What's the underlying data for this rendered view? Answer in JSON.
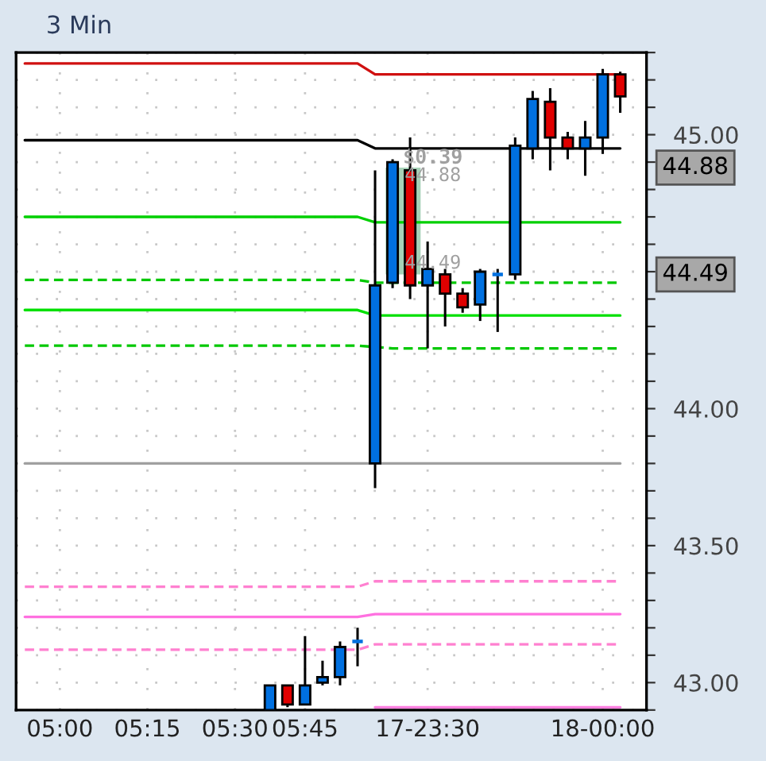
{
  "chart_data": {
    "type": "candlestick",
    "title": "3 Min",
    "categories": [
      null,
      null,
      "05:00",
      null,
      null,
      null,
      null,
      "05:15",
      null,
      null,
      null,
      null,
      "05:30",
      null,
      null,
      null,
      "05:45",
      null,
      null,
      null,
      null,
      null,
      null,
      "17-23:30",
      null,
      null,
      null,
      null,
      null,
      null,
      null,
      null,
      null,
      "18-00:00",
      null,
      null
    ],
    "ohlc": [
      null,
      null,
      null,
      null,
      null,
      null,
      null,
      null,
      null,
      null,
      null,
      null,
      null,
      null,
      [
        42.9,
        42.99,
        42.9,
        42.99
      ],
      [
        42.99,
        42.99,
        42.91,
        42.92
      ],
      [
        42.92,
        43.17,
        42.92,
        42.99
      ],
      [
        43.0,
        43.08,
        42.99,
        43.02
      ],
      [
        43.02,
        43.15,
        42.99,
        43.13
      ],
      [
        43.15,
        43.2,
        43.06,
        43.15
      ],
      [
        43.8,
        44.87,
        43.71,
        44.45
      ],
      [
        44.46,
        44.91,
        44.44,
        44.9
      ],
      [
        44.87,
        44.99,
        44.4,
        44.45
      ],
      [
        44.45,
        44.61,
        44.22,
        44.51
      ],
      [
        44.49,
        44.51,
        44.3,
        44.42
      ],
      [
        44.42,
        44.44,
        44.35,
        44.37
      ],
      [
        44.38,
        44.51,
        44.32,
        44.5
      ],
      [
        44.49,
        44.51,
        44.28,
        44.49
      ],
      [
        44.49,
        44.99,
        44.47,
        44.96
      ],
      [
        44.95,
        45.16,
        44.91,
        45.13
      ],
      [
        45.12,
        45.17,
        44.87,
        44.99
      ],
      [
        44.99,
        45.01,
        44.91,
        44.95
      ],
      [
        44.95,
        45.05,
        44.85,
        44.99
      ],
      [
        44.99,
        45.24,
        44.93,
        45.22
      ],
      [
        45.22,
        45.23,
        45.08,
        45.14
      ],
      null
    ],
    "colors": [
      null,
      null,
      null,
      null,
      null,
      null,
      null,
      null,
      null,
      null,
      null,
      null,
      null,
      null,
      "#0070e0",
      "#e00000",
      "#0070e0",
      "#0070e0",
      "#0070e0",
      "#0070e0",
      "#0070e0",
      "#0070e0",
      "#e00000",
      "#0070e0",
      "#e00000",
      "#e00000",
      "#0070e0",
      "#0070e0",
      "#0070e0",
      "#0070e0",
      "#e00000",
      "#e00000",
      "#0070e0",
      "#0070e0",
      "#e00000",
      null
    ],
    "series": [
      {
        "type": "line",
        "color": "#d01010",
        "line_style": "solid",
        "values": [
          45.26,
          45.26,
          45.26,
          45.26,
          45.26,
          45.26,
          45.26,
          45.26,
          45.26,
          45.26,
          45.26,
          45.26,
          45.26,
          45.26,
          45.26,
          45.26,
          45.26,
          45.26,
          45.26,
          45.26,
          45.22,
          45.22,
          45.22,
          45.22,
          45.22,
          45.22,
          45.22,
          45.22,
          45.22,
          45.22,
          45.22,
          45.22,
          45.22,
          null,
          45.22,
          null
        ]
      },
      {
        "type": "line",
        "color": "#000000",
        "line_style": "solid",
        "values": [
          44.98,
          44.98,
          44.98,
          44.98,
          44.98,
          44.98,
          44.98,
          44.98,
          44.98,
          44.98,
          44.98,
          44.98,
          44.98,
          44.98,
          44.98,
          44.98,
          44.98,
          44.98,
          44.98,
          44.98,
          44.95,
          44.95,
          44.95,
          44.95,
          44.95,
          44.95,
          44.95,
          44.95,
          44.95,
          44.95,
          44.95,
          44.95,
          44.95,
          44.95,
          44.95,
          null
        ]
      },
      {
        "type": "line",
        "color": "#00d000",
        "line_style": "solid",
        "values": [
          44.7,
          44.7,
          44.7,
          44.7,
          44.7,
          44.7,
          44.7,
          44.7,
          44.7,
          44.7,
          44.7,
          44.7,
          44.7,
          44.7,
          44.7,
          44.7,
          44.7,
          44.7,
          44.7,
          44.7,
          44.68,
          44.68,
          44.68,
          44.68,
          44.68,
          44.68,
          44.68,
          44.68,
          null,
          44.68,
          44.68,
          44.68,
          44.68,
          44.68,
          44.68,
          null
        ]
      },
      {
        "type": "line",
        "color": "#00c800",
        "line_style": "dashed",
        "values": [
          44.47,
          44.47,
          44.47,
          44.47,
          44.47,
          44.47,
          44.47,
          44.47,
          44.47,
          44.47,
          44.47,
          44.47,
          44.47,
          44.47,
          44.47,
          44.47,
          44.47,
          44.47,
          44.47,
          44.47,
          44.46,
          44.46,
          null,
          44.46,
          44.46,
          44.46,
          null,
          44.46,
          44.46,
          44.46,
          44.46,
          44.46,
          44.46,
          44.46,
          44.46,
          null
        ]
      },
      {
        "type": "line",
        "color": "#00e000",
        "line_style": "solid",
        "values": [
          44.36,
          44.36,
          44.36,
          44.36,
          44.36,
          44.36,
          44.36,
          44.36,
          44.36,
          44.36,
          44.36,
          44.36,
          44.36,
          44.36,
          44.36,
          44.36,
          44.36,
          44.36,
          44.36,
          44.36,
          44.34,
          44.34,
          44.34,
          44.34,
          44.34,
          44.34,
          44.34,
          44.34,
          44.34,
          44.34,
          44.34,
          44.34,
          44.34,
          44.34,
          44.34,
          null
        ]
      },
      {
        "type": "line",
        "color": "#00c800",
        "line_style": "dashed",
        "values": [
          44.23,
          44.23,
          44.23,
          44.23,
          44.23,
          44.23,
          44.23,
          44.23,
          44.23,
          44.23,
          44.23,
          44.23,
          44.23,
          44.23,
          44.23,
          44.23,
          44.23,
          44.23,
          44.23,
          44.23,
          null,
          44.22,
          44.22,
          44.22,
          44.22,
          44.22,
          44.22,
          44.22,
          44.22,
          44.22,
          44.22,
          44.22,
          44.22,
          44.22,
          44.22,
          null
        ]
      },
      {
        "type": "line",
        "color": "#a0a0a0",
        "line_style": "solid",
        "values": [
          43.8,
          43.8,
          43.8,
          43.8,
          43.8,
          43.8,
          43.8,
          43.8,
          43.8,
          43.8,
          43.8,
          43.8,
          43.8,
          43.8,
          43.8,
          43.8,
          43.8,
          43.8,
          43.8,
          43.8,
          43.8,
          43.8,
          43.8,
          43.8,
          43.8,
          43.8,
          43.8,
          43.8,
          43.8,
          43.8,
          43.8,
          43.8,
          43.8,
          43.8,
          43.8,
          null
        ]
      },
      {
        "type": "line",
        "color": "#ff80d0",
        "line_style": "dashed",
        "values": [
          43.35,
          43.35,
          43.35,
          43.35,
          43.35,
          43.35,
          43.35,
          43.35,
          43.35,
          43.35,
          43.35,
          43.35,
          43.35,
          43.35,
          43.35,
          43.35,
          43.35,
          43.35,
          43.35,
          43.35,
          43.37,
          43.37,
          43.37,
          43.37,
          43.37,
          43.37,
          43.37,
          43.37,
          43.37,
          43.37,
          43.37,
          43.37,
          43.37,
          43.37,
          43.37,
          null
        ]
      },
      {
        "type": "line",
        "color": "#ff70e0",
        "line_style": "solid",
        "values": [
          43.24,
          43.24,
          43.24,
          43.24,
          43.24,
          43.24,
          43.24,
          43.24,
          43.24,
          43.24,
          43.24,
          43.24,
          43.24,
          43.24,
          43.24,
          43.24,
          43.24,
          43.24,
          43.24,
          43.24,
          43.25,
          43.25,
          43.25,
          43.25,
          43.25,
          43.25,
          43.25,
          43.25,
          43.25,
          43.25,
          43.25,
          43.25,
          43.25,
          43.25,
          43.25,
          null
        ]
      },
      {
        "type": "line",
        "color": "#ff80d0",
        "line_style": "dashed",
        "values": [
          43.12,
          43.12,
          43.12,
          43.12,
          43.12,
          43.12,
          43.12,
          43.12,
          43.12,
          43.12,
          43.12,
          43.12,
          43.12,
          43.12,
          43.12,
          43.12,
          43.12,
          43.12,
          null,
          43.12,
          43.14,
          43.14,
          43.14,
          43.14,
          43.14,
          43.14,
          43.14,
          43.14,
          43.14,
          43.14,
          43.14,
          43.14,
          43.14,
          43.14,
          43.14,
          null
        ]
      },
      {
        "type": "line",
        "color": "#ff80e0",
        "line_style": "solid",
        "values": [
          null,
          null,
          null,
          null,
          null,
          null,
          null,
          null,
          null,
          null,
          null,
          null,
          null,
          null,
          null,
          null,
          null,
          null,
          null,
          null,
          42.91,
          42.91,
          42.91,
          42.91,
          42.91,
          42.91,
          42.91,
          42.91,
          42.91,
          42.91,
          42.91,
          42.91,
          42.91,
          42.91,
          42.91,
          null
        ]
      }
    ],
    "ylim": [
      42.9,
      45.3
    ],
    "yticks": [
      {
        "value": 42.9,
        "label": null
      },
      {
        "value": 43.0,
        "label": "43.00"
      },
      {
        "value": 43.1,
        "label": null
      },
      {
        "value": 43.2,
        "label": null
      },
      {
        "value": 43.3,
        "label": null
      },
      {
        "value": 43.4,
        "label": null
      },
      {
        "value": 43.5,
        "label": "43.50"
      },
      {
        "value": 43.6,
        "label": null
      },
      {
        "value": 43.7,
        "label": null
      },
      {
        "value": 43.8,
        "label": null
      },
      {
        "value": 43.9,
        "label": null
      },
      {
        "value": 44.0,
        "label": "44.00"
      },
      {
        "value": 44.1,
        "label": null
      },
      {
        "value": 44.2,
        "label": null
      },
      {
        "value": 44.3,
        "label": null
      },
      {
        "value": 44.4,
        "label": null
      },
      {
        "value": 44.5,
        "label": null
      },
      {
        "value": 44.6,
        "label": null
      },
      {
        "value": 44.7,
        "label": null
      },
      {
        "value": 44.8,
        "label": null
      },
      {
        "value": 44.9,
        "label": null
      },
      {
        "value": 45.0,
        "label": "45.00"
      },
      {
        "value": 45.1,
        "label": null
      },
      {
        "value": 45.2,
        "label": null
      },
      {
        "value": 45.3,
        "label": null
      }
    ],
    "annotations": [
      "$0.39",
      "44.88",
      "44.49",
      "44.88",
      "44.49"
    ],
    "bands": [
      {
        "axis": "y",
        "from": 44.49,
        "to": 44.88,
        "color": "#3a9a60"
      }
    ],
    "grid": true,
    "legend": false
  }
}
